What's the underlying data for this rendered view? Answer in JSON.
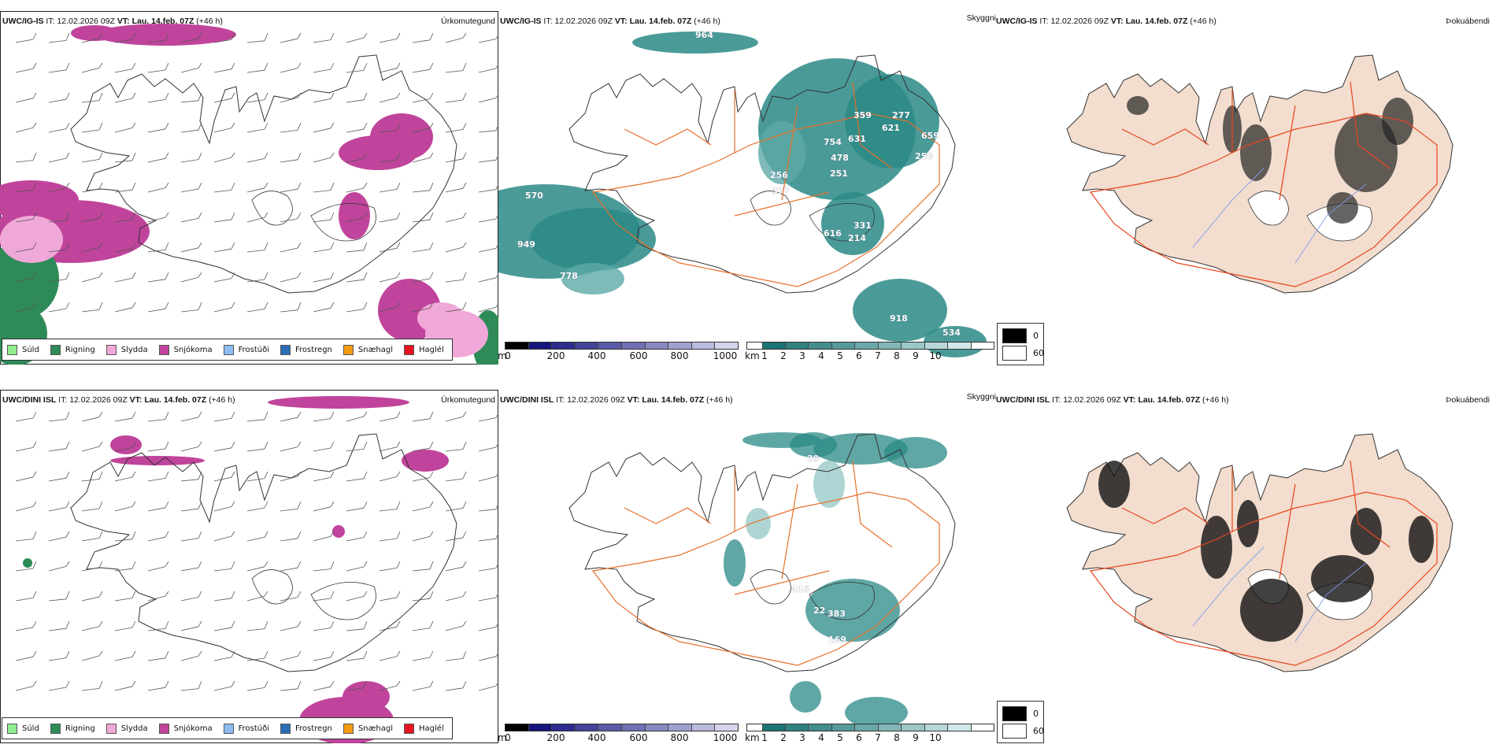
{
  "rows": [
    {
      "model": "UWC/IG-IS",
      "it_label": "IT:",
      "it_value": "12.02.2026 09Z",
      "vt_label": "VT:",
      "vt_value": "Lau. 14.feb. 07Z",
      "lead": "(+46 h)",
      "panel_titles": {
        "precip": "Úrkomutegund",
        "visibility": "Skyggni",
        "fog": "Þokuábendi"
      },
      "visibility_labels": [
        "964",
        "570",
        "949",
        "778",
        "359",
        "277",
        "621",
        "754",
        "631",
        "659",
        "478",
        "250",
        "251",
        "616",
        "331",
        "214",
        "918",
        "534",
        "256",
        "377"
      ]
    },
    {
      "model": "UWC/DINI ISL",
      "it_label": "IT:",
      "it_value": "12.02.2026 09Z",
      "vt_label": "VT:",
      "vt_value": "Lau. 14.feb. 07Z",
      "lead": "(+46 h)",
      "panel_titles": {
        "precip": "Úrkomutegund",
        "visibility": "Skyggni",
        "fog": "Þokuábendi"
      },
      "visibility_labels": [
        "39",
        "416",
        "22",
        "383",
        "169"
      ]
    }
  ],
  "precip_legend": [
    {
      "label": "Súld",
      "color": "#90ee90"
    },
    {
      "label": "Rigning",
      "color": "#2e8b57"
    },
    {
      "label": "Slydda",
      "color": "#f0a8d8"
    },
    {
      "label": "Snjókoma",
      "color": "#c0449c"
    },
    {
      "label": "Frostúði",
      "color": "#8fbcf0"
    },
    {
      "label": "Frostregn",
      "color": "#2a6db4"
    },
    {
      "label": "Snæhagl",
      "color": "#f39c12"
    },
    {
      "label": "Haglél",
      "color": "#e8141e"
    }
  ],
  "ceiling_scale": {
    "unit": "m",
    "ticks": [
      "0",
      "200",
      "400",
      "600",
      "800",
      "1000"
    ],
    "colors": [
      "#000000",
      "#15157e",
      "#2c2c8c",
      "#434398",
      "#5a5aa6",
      "#7070b4",
      "#8888c2",
      "#a0a0d0",
      "#babade",
      "#d4d4ec"
    ]
  },
  "visibility_scale": {
    "unit": "km",
    "ticks": [
      "1",
      "2",
      "3",
      "4",
      "5",
      "6",
      "7",
      "8",
      "9",
      "10"
    ],
    "colors": [
      "#1c7373",
      "#2f8080",
      "#438d8d",
      "#579a9a",
      "#6ca8a8",
      "#83b7b7",
      "#9cc7c7",
      "#b6d7d7",
      "#d1e8e8",
      "#ffffff"
    ]
  },
  "fog_key": [
    {
      "label": "0",
      "color": "#000000"
    },
    {
      "label": "60",
      "color": "#ffffff"
    }
  ],
  "colors": {
    "land_fog": "#f2ddce",
    "roads": "#e8702a",
    "rivers": "#7f9cf0",
    "teal": "#2a8a86",
    "snow": "#c0449c"
  }
}
